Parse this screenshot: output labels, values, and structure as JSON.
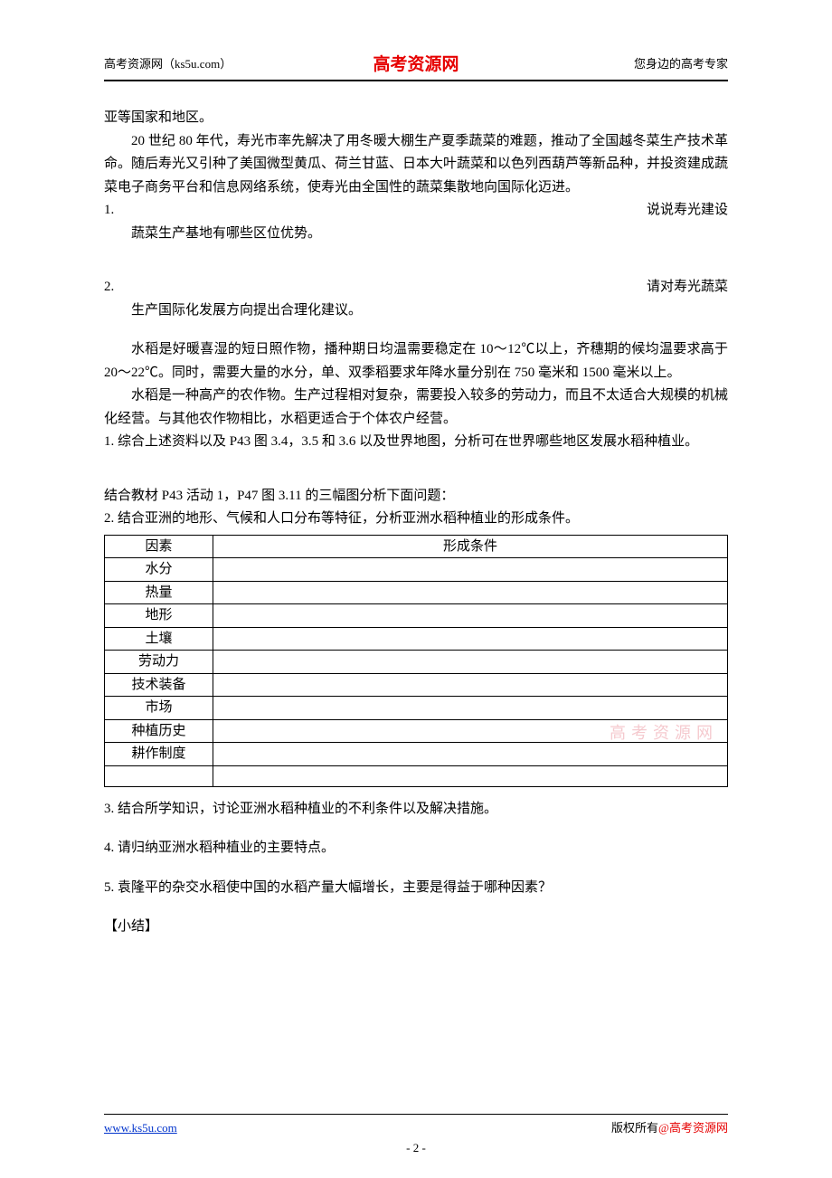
{
  "header": {
    "left": "高考资源网（ks5u.com）",
    "center": "高考资源网",
    "right": "您身边的高考专家"
  },
  "intro": {
    "line1": "亚等国家和地区。",
    "para2": "20 世纪 80 年代，寿光市率先解决了用冬暖大棚生产夏季蔬菜的难题，推动了全国越冬菜生产技术革命。随后寿光又引种了美国微型黄瓜、荷兰甘蓝、日本大叶蔬菜和以色列西葫芦等新品种，并投资建成蔬菜电子商务平台和信息网络系统，使寿光由全国性的蔬菜集散地向国际化迈进。"
  },
  "q1": {
    "num": "1.",
    "tail": "说说寿光建设",
    "cont": "蔬菜生产基地有哪些区位优势。"
  },
  "q2": {
    "num": "2.",
    "tail": "请对寿光蔬菜",
    "cont": "生产国际化发展方向提出合理化建议。"
  },
  "rice": {
    "para1": "水稻是好暖喜湿的短日照作物，播种期日均温需要稳定在 10～12℃以上，齐穗期的候均温要求高于 20～22℃。同时，需要大量的水分，单、双季稻要求年降水量分别在 750 毫米和 1500 毫米以上。",
    "para2": "水稻是一种高产的农作物。生产过程相对复杂，需要投入较多的劳动力，而且不太适合大规模的机械化经营。与其他农作物相比，水稻更适合于个体农户经营。"
  },
  "rq1": "1.  综合上述资料以及 P43 图 3.4，3.5 和 3.6 以及世界地图，分析可在世界哪些地区发展水稻种植业。",
  "lead2": "结合教材 P43 活动 1，P47 图 3.11 的三幅图分析下面问题：",
  "rq2": "2.  结合亚洲的地形、气候和人口分布等特征，分析亚洲水稻种植业的形成条件。",
  "table": {
    "head": {
      "c1": "因素",
      "c2": "形成条件"
    },
    "rows": [
      "水分",
      "热量",
      "地形",
      "土壤",
      "劳动力",
      "技术装备",
      "市场",
      "种植历史",
      "耕作制度"
    ],
    "watermark": "高考资源网"
  },
  "rq3": "3.  结合所学知识，讨论亚洲水稻种植业的不利条件以及解决措施。",
  "rq4": "4.  请归纳亚洲水稻种植业的主要特点。",
  "rq5": "5.  袁隆平的杂交水稻使中国的水稻产量大幅增长，主要是得益于哪种因素？",
  "summary": "【小结】",
  "footer": {
    "left": "www.ks5u.com",
    "right_plain": "版权所有",
    "right_red": "@高考资源网",
    "page": "- 2 -"
  }
}
